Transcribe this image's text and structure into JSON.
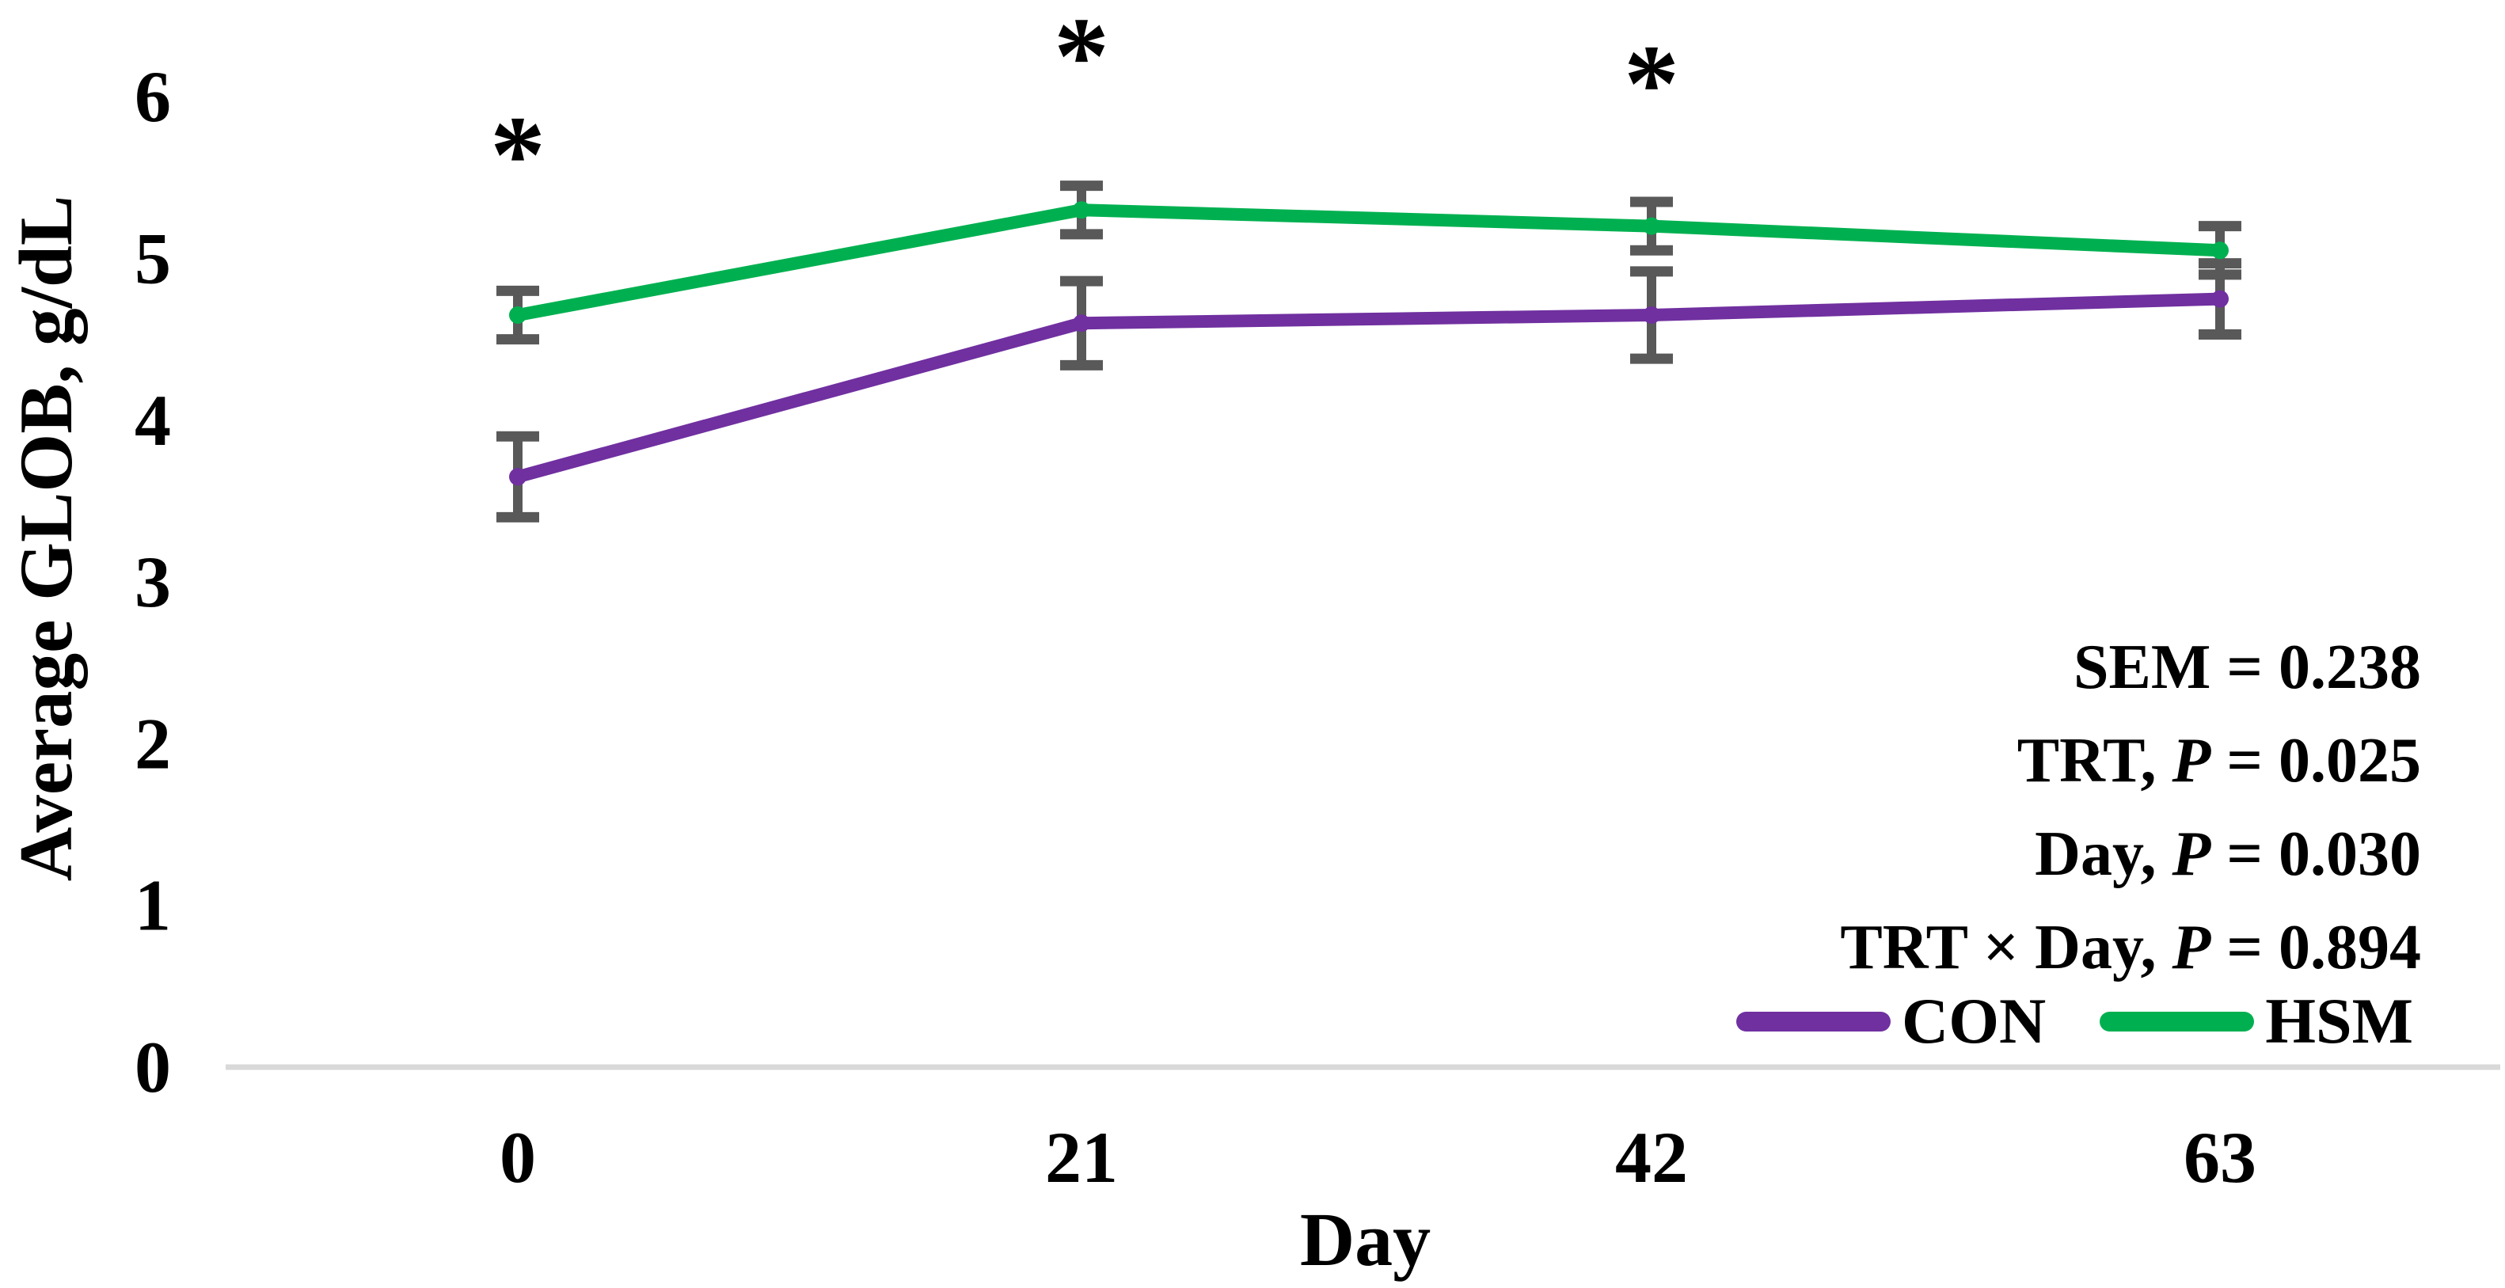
{
  "chart_data": {
    "type": "line",
    "xlabel": "Day",
    "ylabel": "Average GLOB, g/dL",
    "categories": [
      "0",
      "21",
      "42",
      "63"
    ],
    "yticks": [
      "0",
      "1",
      "2",
      "3",
      "4",
      "5",
      "6"
    ],
    "ylim": [
      0,
      6
    ],
    "grid": false,
    "legend_position": "bottom-right-inside",
    "axis_line_color": "#D9D9D9",
    "error_bar_color": "#595959",
    "text_color": "#000000",
    "series": [
      {
        "name": "CON",
        "color": "#7030A0",
        "values": [
          3.65,
          4.6,
          4.65,
          4.75
        ],
        "sem_bars": [
          0.25,
          0.26,
          0.27,
          0.22
        ]
      },
      {
        "name": "HSM",
        "color": "#00B050",
        "values": [
          4.65,
          5.3,
          5.2,
          5.05
        ],
        "sem_bars": [
          0.15,
          0.15,
          0.15,
          0.15
        ]
      }
    ],
    "annotations": [
      {
        "text": "*",
        "category_index": 0,
        "y": 5.75
      },
      {
        "text": "*",
        "category_index": 1,
        "y": 6.36
      },
      {
        "text": "*",
        "category_index": 2,
        "y": 6.19
      }
    ],
    "stats_lines": [
      {
        "pre": "SEM = 0.238",
        "p": "",
        "post": ""
      },
      {
        "pre": "TRT, ",
        "p": "P",
        "post": " = 0.025"
      },
      {
        "pre": "Day, ",
        "p": "P",
        "post": " = 0.030"
      },
      {
        "pre": "TRT × Day, ",
        "p": "P",
        "post": " = 0.894"
      }
    ]
  }
}
